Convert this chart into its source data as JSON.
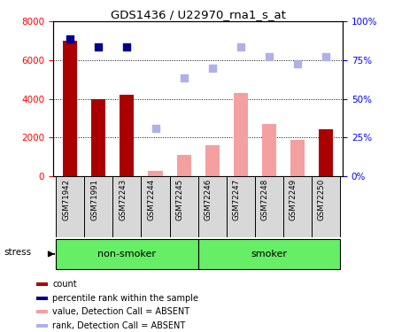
{
  "title": "GDS1436 / U22970_rna1_s_at",
  "samples": [
    "GSM71942",
    "GSM71991",
    "GSM72243",
    "GSM72244",
    "GSM72245",
    "GSM72246",
    "GSM72247",
    "GSM72248",
    "GSM72249",
    "GSM72250"
  ],
  "count_values": [
    7000,
    4000,
    4200,
    null,
    null,
    null,
    null,
    null,
    null,
    2400
  ],
  "count_color": "#aa0000",
  "absent_value_values": [
    null,
    null,
    null,
    250,
    1100,
    1600,
    4300,
    2700,
    1850,
    null
  ],
  "absent_value_color": "#f4a0a0",
  "percentile_rank_values": [
    7100,
    6700,
    6700,
    null,
    null,
    null,
    null,
    null,
    null,
    null
  ],
  "percentile_rank_color": "#00008b",
  "absent_rank_values": [
    null,
    null,
    null,
    2450,
    5100,
    5600,
    6700,
    6200,
    5800,
    6200
  ],
  "absent_rank_color": "#b0b0e8",
  "ylim_left": [
    0,
    8000
  ],
  "yticks_left": [
    0,
    2000,
    4000,
    6000,
    8000
  ],
  "ytick_labels_left": [
    "0",
    "2000",
    "4000",
    "6000",
    "8000"
  ],
  "ytick_labels_right": [
    "0%",
    "25%",
    "50%",
    "75%",
    "100%"
  ],
  "bar_width": 0.5,
  "group_configs": [
    {
      "start": 0,
      "end": 4,
      "label": "non-smoker",
      "color": "#66ee66"
    },
    {
      "start": 5,
      "end": 9,
      "label": "smoker",
      "color": "#66ee66"
    }
  ],
  "legend_items": [
    {
      "label": "count",
      "color": "#aa0000"
    },
    {
      "label": "percentile rank within the sample",
      "color": "#00008b"
    },
    {
      "label": "value, Detection Call = ABSENT",
      "color": "#f4a0a0"
    },
    {
      "label": "rank, Detection Call = ABSENT",
      "color": "#b0b0e8"
    }
  ]
}
